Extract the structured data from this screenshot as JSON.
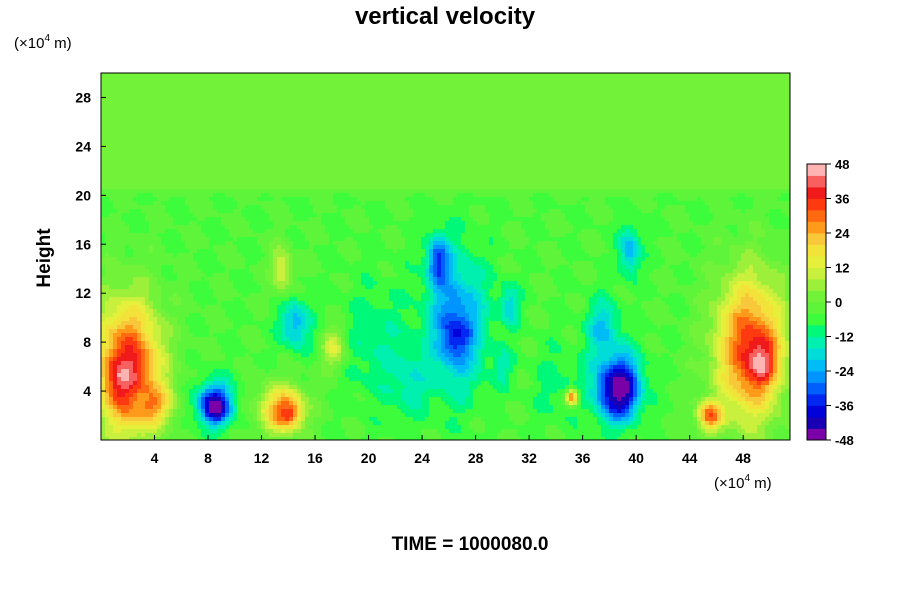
{
  "chart_data": {
    "type": "heatmap",
    "title": "vertical velocity",
    "ylabel": "Height",
    "y_unit_label": "(×10",
    "x_unit_label": "(×10",
    "unit_exponent": "4",
    "unit_suffix": " m)",
    "footer": "TIME = 1000080.0",
    "xlim": [
      0,
      51.5
    ],
    "ylim": [
      0,
      30
    ],
    "x_ticks": [
      4,
      8,
      12,
      16,
      20,
      24,
      28,
      32,
      36,
      40,
      44,
      48
    ],
    "y_ticks": [
      4,
      8,
      12,
      16,
      20,
      24,
      28
    ],
    "colorbar": {
      "min": -48,
      "max": 48,
      "step": 4,
      "ticks": [
        48,
        36,
        24,
        12,
        0,
        -12,
        -24,
        -36,
        -48
      ],
      "colors": [
        "#7a00a8",
        "#1a00b4",
        "#0000d8",
        "#0028f0",
        "#0060ff",
        "#0094ff",
        "#00bcf6",
        "#00dcd8",
        "#00f0b0",
        "#00f878",
        "#3cfc3c",
        "#5ef43a",
        "#72f238",
        "#9cf03a",
        "#c8f03c",
        "#e6f03a",
        "#f2e23a",
        "#f8c83a",
        "#ff9a1a",
        "#ff6a10",
        "#ff3a10",
        "#f01a1a",
        "#f86060",
        "#ffb4b4"
      ]
    },
    "field": {
      "background": -4,
      "upper_layer": {
        "above_height": 19.8,
        "value": 0
      },
      "features": [
        {
          "x": 2,
          "y": 6,
          "rx": 3.2,
          "ry": 7,
          "value": 36
        },
        {
          "x": 1.8,
          "y": 5,
          "rx": 1.5,
          "ry": 2.5,
          "value": 44
        },
        {
          "x": 3.5,
          "y": 3,
          "rx": 2,
          "ry": 2,
          "value": 30
        },
        {
          "x": 8.5,
          "y": 3,
          "rx": 1.8,
          "ry": 2.2,
          "value": -36
        },
        {
          "x": 8.5,
          "y": 2.6,
          "rx": 1,
          "ry": 1.3,
          "value": -46
        },
        {
          "x": 13.5,
          "y": 2.5,
          "rx": 2.2,
          "ry": 2.5,
          "value": 26
        },
        {
          "x": 14,
          "y": 2.2,
          "rx": 1,
          "ry": 1.2,
          "value": 36
        },
        {
          "x": 17.5,
          "y": 7.5,
          "rx": 1.2,
          "ry": 2.2,
          "value": 16
        },
        {
          "x": 14.5,
          "y": 9.5,
          "rx": 1.4,
          "ry": 2.5,
          "value": -24
        },
        {
          "x": 13.5,
          "y": 14,
          "rx": 1,
          "ry": 2.5,
          "value": 12
        },
        {
          "x": 26.5,
          "y": 9.5,
          "rx": 2.8,
          "ry": 7,
          "value": -28
        },
        {
          "x": 26.5,
          "y": 8.5,
          "rx": 1.2,
          "ry": 2,
          "value": -38
        },
        {
          "x": 25.2,
          "y": 14.5,
          "rx": 1,
          "ry": 2.5,
          "value": -36
        },
        {
          "x": 30.5,
          "y": 11,
          "rx": 1,
          "ry": 2,
          "value": -20
        },
        {
          "x": 30,
          "y": 6,
          "rx": 1,
          "ry": 2,
          "value": -14
        },
        {
          "x": 34,
          "y": 4.5,
          "rx": 2.2,
          "ry": 4,
          "value": -10
        },
        {
          "x": 35.2,
          "y": 3.5,
          "rx": 0.6,
          "ry": 0.8,
          "value": 30
        },
        {
          "x": 38.5,
          "y": 4.5,
          "rx": 2.2,
          "ry": 3.5,
          "value": -40
        },
        {
          "x": 38.8,
          "y": 4,
          "rx": 1.4,
          "ry": 2.3,
          "value": -46
        },
        {
          "x": 37.5,
          "y": 9,
          "rx": 1.5,
          "ry": 3,
          "value": -22
        },
        {
          "x": 39.5,
          "y": 15.5,
          "rx": 1,
          "ry": 2.5,
          "value": -24
        },
        {
          "x": 48.5,
          "y": 7.5,
          "rx": 3.3,
          "ry": 7.5,
          "value": 34
        },
        {
          "x": 49.2,
          "y": 6.5,
          "rx": 1.4,
          "ry": 2.4,
          "value": 46
        },
        {
          "x": 45.5,
          "y": 2,
          "rx": 1.2,
          "ry": 1.5,
          "value": 32
        },
        {
          "x": 20.5,
          "y": 8,
          "rx": 3,
          "ry": 6,
          "value": -12
        },
        {
          "x": 23,
          "y": 5,
          "rx": 2,
          "ry": 3.5,
          "value": -16
        }
      ]
    }
  }
}
